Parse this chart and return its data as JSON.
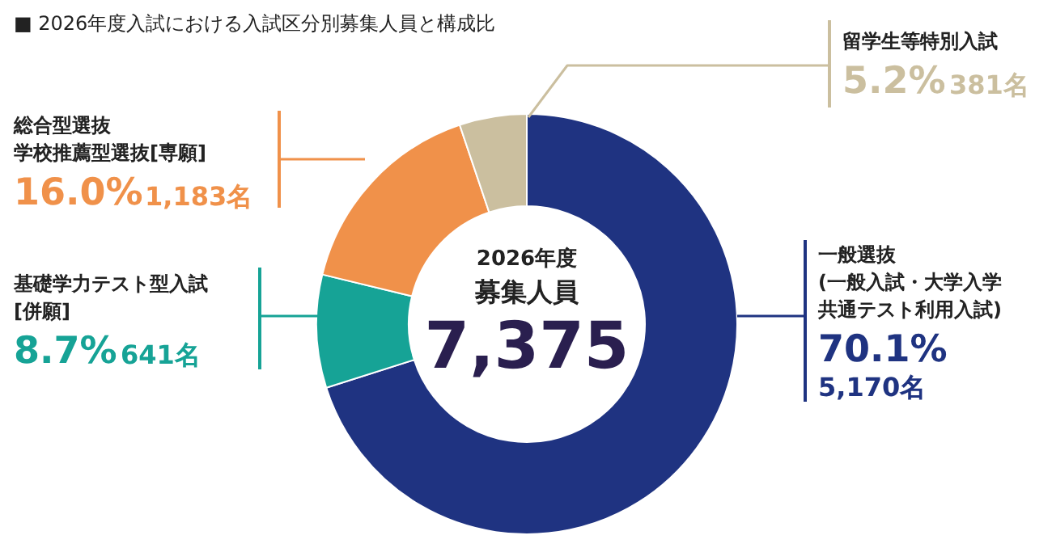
{
  "chart_data": {
    "type": "donut",
    "title": "■ 2026年度入試における入試区分別募集人員と構成比",
    "categories": [
      "一般選抜(一般入試・大学入学共通テスト利用入試)",
      "基礎学力テスト型入試[併願]",
      "総合型選抜学校推薦型選抜[専願]",
      "留学生等特別入試"
    ],
    "values": [
      5170,
      641,
      1183,
      381
    ],
    "colors": [
      "#1f3381",
      "#16a396",
      "#f0914a",
      "#cbbf9f"
    ],
    "value_labels": [
      "70.1%5,170名",
      "8.7%641名",
      "16.0%1,183名",
      "5.2%381名"
    ],
    "annotations": [
      "2026年度",
      "募集人員",
      "7,375"
    ]
  }
}
